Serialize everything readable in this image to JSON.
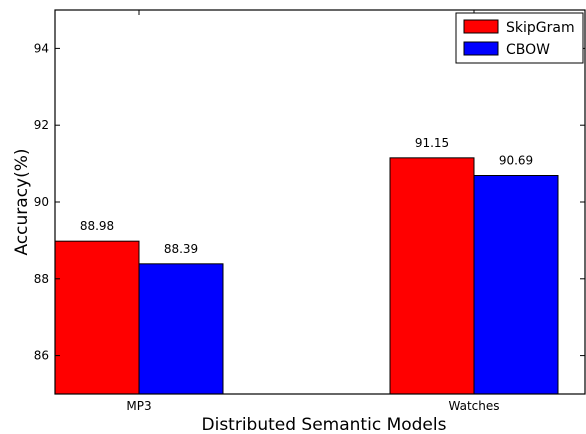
{
  "chart_data": {
    "type": "bar",
    "categories": [
      "MP3",
      "Watches"
    ],
    "series": [
      {
        "name": "SkipGram",
        "values": [
          88.98,
          91.15
        ],
        "color": "#ff0000"
      },
      {
        "name": "CBOW",
        "values": [
          88.39,
          90.69
        ],
        "color": "#0000ff"
      }
    ],
    "data_labels": [
      [
        "88.98",
        "91.15"
      ],
      [
        "88.39",
        "90.69"
      ]
    ],
    "xlabel": "Distributed Semantic Models",
    "ylabel": "Accuracy(%)",
    "ylim": [
      85,
      95
    ],
    "yticks": [
      86,
      88,
      90,
      92,
      94
    ],
    "ytick_labels": [
      "86",
      "88",
      "90",
      "92",
      "94"
    ],
    "legend_placement": "top-right",
    "grid": false
  }
}
